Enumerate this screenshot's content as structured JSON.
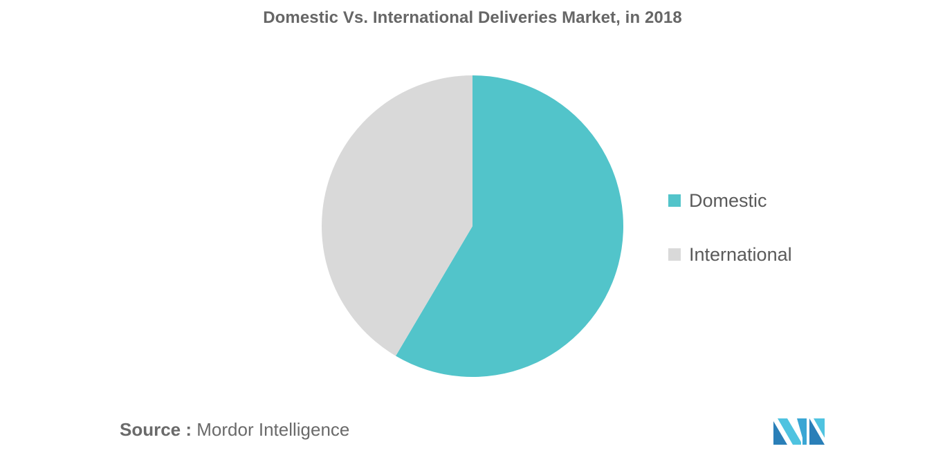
{
  "chart_data": {
    "type": "pie",
    "title": "Domestic Vs. International Deliveries Market, in 2018",
    "slices": [
      {
        "label": "Domestic",
        "value": 58.5,
        "color": "#52c4ca"
      },
      {
        "label": "International",
        "value": 41.5,
        "color": "#d9d9d9"
      }
    ],
    "legend_position": "right"
  },
  "source": {
    "prefix": "Source :",
    "name": "Mordor Intelligence"
  },
  "colors": {
    "logo_light": "#4fc3e0",
    "logo_dark": "#2a7fb8",
    "logo_mid": "#3aa6d4"
  }
}
